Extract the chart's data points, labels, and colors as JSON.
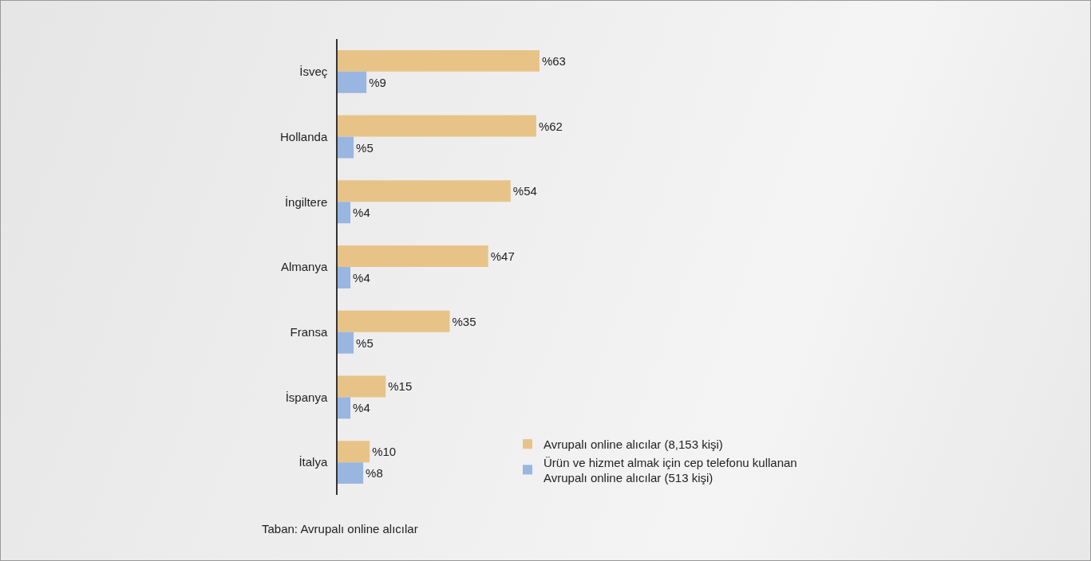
{
  "chart_data": {
    "type": "bar",
    "orientation": "horizontal",
    "categories": [
      "İsveç",
      "Hollanda",
      "İngiltere",
      "Almanya",
      "Fransa",
      "İspanya",
      "İtalya"
    ],
    "series": [
      {
        "name": "Avrupalı online alıcılar (8,153 kişi)",
        "color": "#e8c388",
        "values": [
          63,
          62,
          54,
          47,
          35,
          15,
          10
        ],
        "value_labels": [
          "%63",
          "%62",
          "%54",
          "%47",
          "%35",
          "%15",
          "%10"
        ]
      },
      {
        "name": "Ürün ve hizmet almak için cep telefonu kullanan\nAvrupalı online alıcılar (513 kişi)",
        "color": "#98b6e0",
        "values": [
          9,
          5,
          4,
          4,
          5,
          4,
          8
        ],
        "value_labels": [
          "%9",
          "%5",
          "%4",
          "%4",
          "%5",
          "%4",
          "%8"
        ]
      }
    ],
    "legend": "bottom right",
    "grid": false,
    "annotations": [
      "Taban: Avrupalı online alıcılar"
    ]
  }
}
